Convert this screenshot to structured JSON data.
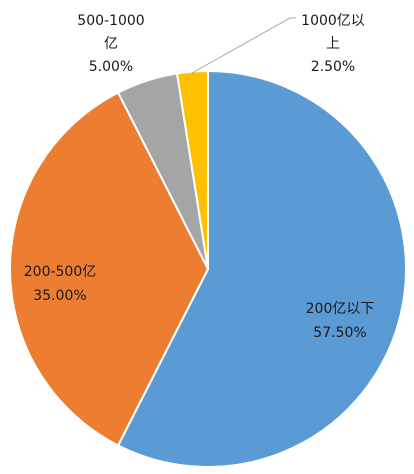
{
  "chart_data": {
    "type": "pie",
    "title": "",
    "series": [
      {
        "values": [
          57.5,
          35.0,
          5.0,
          2.5
        ],
        "categories": [
          "200亿以下",
          "200-500亿",
          "500-1000亿",
          "1000亿以上"
        ]
      }
    ],
    "slices": [
      {
        "category": "200亿以下",
        "value": 57.5,
        "percent_label": "57.50%",
        "color": "#5b9bd5",
        "label_lines": [
          "200亿以下"
        ]
      },
      {
        "category": "200-500亿",
        "value": 35.0,
        "percent_label": "35.00%",
        "color": "#ed7d31",
        "label_lines": [
          "200-500亿"
        ]
      },
      {
        "category": "500-1000亿",
        "value": 5.0,
        "percent_label": "5.00%",
        "color": "#a5a5a5",
        "label_lines": [
          "500-1000",
          "亿"
        ]
      },
      {
        "category": "1000亿以上",
        "value": 2.5,
        "percent_label": "2.50%",
        "color": "#ffc000",
        "label_lines": [
          "1000亿以",
          "上"
        ]
      }
    ],
    "start_angle_deg": 0,
    "direction": "clockwise",
    "legend": "none",
    "data_labels": "category and percentage",
    "leader_lines": [
      "1000亿以上"
    ]
  }
}
